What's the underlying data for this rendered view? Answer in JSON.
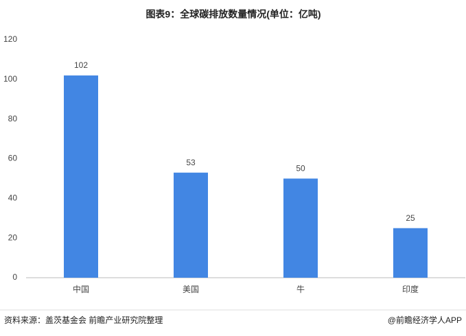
{
  "chart_data": {
    "type": "bar",
    "title": "图表9：全球碳排放数量情况(单位：亿吨)",
    "categories": [
      "中国",
      "美国",
      "牛",
      "印度"
    ],
    "values": [
      102,
      53,
      50,
      25
    ],
    "color": "#4286e3",
    "ylim": [
      0,
      120
    ],
    "yticks": [
      0,
      20,
      40,
      60,
      80,
      100,
      120
    ],
    "grid": false
  },
  "footer": {
    "source": "资料来源：盖茨基金会 前瞻产业研究院整理",
    "brand": "@前瞻经济学人APP"
  }
}
